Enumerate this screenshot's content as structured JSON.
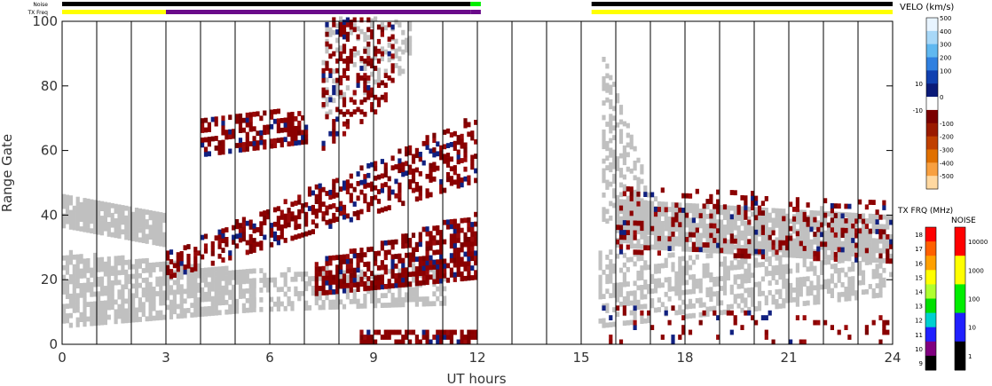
{
  "chart_data": {
    "type": "heatmap",
    "title": "",
    "xlabel": "UT hours",
    "ylabel": "Range Gate",
    "xlim": [
      0,
      24
    ],
    "ylim": [
      0,
      100
    ],
    "x_ticks": [
      "0",
      "3",
      "6",
      "9",
      "12",
      "15",
      "18",
      "21",
      "24"
    ],
    "y_ticks": [
      "0",
      "20",
      "40",
      "60",
      "80",
      "100"
    ],
    "x_tick_values": [
      0,
      3,
      6,
      9,
      12,
      15,
      18,
      21,
      24
    ],
    "y_tick_values": [
      0,
      20,
      40,
      60,
      80,
      100
    ],
    "grid": "vertical lines every hour",
    "status_bars": [
      {
        "name": "Noise",
        "segments": [
          {
            "start": 0,
            "end": 11.8,
            "color": "#000000"
          },
          {
            "start": 11.8,
            "end": 12.1,
            "color": "#00ee00"
          },
          {
            "start": 15.3,
            "end": 24,
            "color": "#000000"
          }
        ]
      },
      {
        "name": "TX Freq",
        "segments": [
          {
            "start": 0,
            "end": 3.0,
            "color": "#ffff00"
          },
          {
            "start": 3.0,
            "end": 11.8,
            "color": "#6a0a8a"
          },
          {
            "start": 11.8,
            "end": 12.1,
            "color": "#6a0a8a"
          },
          {
            "start": 15.3,
            "end": 24,
            "color": "#ffff00"
          }
        ]
      }
    ],
    "no_data_interval": [
      12.1,
      15.3
    ],
    "ground_scatter_color": "#c0c0c0",
    "scatter_regions": [
      {
        "kind": "ground",
        "t0": 0,
        "t1": 3.0,
        "g0": 36,
        "g1": 46,
        "g0e": 30,
        "g1e": 40,
        "density": 0.85
      },
      {
        "kind": "ground",
        "t0": 0,
        "t1": 5.5,
        "g0": 5,
        "g1": 28,
        "g0e": 10,
        "g1e": 22,
        "density": 0.75
      },
      {
        "kind": "ground",
        "t0": 5.5,
        "t1": 11.0,
        "g0": 10,
        "g1": 22,
        "g0e": 12,
        "g1e": 24,
        "density": 0.5
      },
      {
        "kind": "ground",
        "t0": 16.0,
        "t1": 24,
        "g0": 30,
        "g1": 45,
        "g0e": 25,
        "g1e": 40,
        "density": 0.85
      },
      {
        "kind": "ground",
        "t0": 15.6,
        "t1": 17.0,
        "g0": 38,
        "g1": 90,
        "g0e": 30,
        "g1e": 45,
        "density": 0.5
      },
      {
        "kind": "ground",
        "t0": 15.5,
        "t1": 24,
        "g0": 5,
        "g1": 28,
        "g0e": 15,
        "g1e": 25,
        "density": 0.5
      },
      {
        "kind": "ground",
        "t0": 7.5,
        "t1": 10.0,
        "g0": 70,
        "g1": 100,
        "g0e": 85,
        "g1e": 100,
        "density": 0.25
      },
      {
        "kind": "ionospheric",
        "t0": 3.0,
        "t1": 11.9,
        "g0": 20,
        "g1": 28,
        "g0e": 50,
        "g1e": 70,
        "density": 0.45
      },
      {
        "kind": "ionospheric",
        "t0": 4.0,
        "t1": 7.0,
        "g0": 58,
        "g1": 70,
        "g0e": 62,
        "g1e": 72,
        "density": 0.55
      },
      {
        "kind": "ionospheric",
        "t0": 7.3,
        "t1": 11.9,
        "g0": 15,
        "g1": 25,
        "g0e": 20,
        "g1e": 40,
        "density": 0.65
      },
      {
        "kind": "ionospheric",
        "t0": 7.5,
        "t1": 9.5,
        "g0": 60,
        "g1": 100,
        "g0e": 75,
        "g1e": 100,
        "density": 0.3
      },
      {
        "kind": "ionospheric",
        "t0": 8.5,
        "t1": 11.9,
        "g0": 0,
        "g1": 4,
        "g0e": 0,
        "g1e": 4,
        "density": 0.6
      },
      {
        "kind": "ionospheric",
        "t0": 15.5,
        "t1": 24,
        "g0": 0,
        "g1": 12,
        "g0e": 0,
        "g1e": 8,
        "density": 0.15
      },
      {
        "kind": "ionospheric",
        "t0": 16.0,
        "t1": 24,
        "g0": 28,
        "g1": 48,
        "g0e": 25,
        "g1e": 44,
        "density": 0.2
      }
    ],
    "velocity_colorbar": {
      "title": "VELO (km/s)",
      "labels": [
        "500",
        "400",
        "300",
        "200",
        "100",
        "10",
        "0",
        "-10",
        "-100",
        "-200",
        "-300",
        "-400",
        "-500"
      ],
      "colors": [
        "#e8f4ff",
        "#a8d8f8",
        "#60b8f0",
        "#3080e0",
        "#1040b0",
        "#0a1a78",
        "#ffffff",
        "#7a0000",
        "#9a1a00",
        "#c04000",
        "#e07000",
        "#f8a040",
        "#ffd8a0"
      ]
    },
    "txfreq_colorbar": {
      "title": "TX FRQ (MHz)",
      "labels": [
        "18",
        "17",
        "16",
        "15",
        "14",
        "13",
        "12",
        "11",
        "10",
        "9"
      ],
      "colors": [
        "#ff0000",
        "#ff6000",
        "#ffa000",
        "#ffff00",
        "#b0ff30",
        "#00e000",
        "#00d0d0",
        "#2020ff",
        "#800080",
        "#000000"
      ]
    },
    "noise_colorbar": {
      "title": "NOISE",
      "labels": [
        "10000",
        "1000",
        "100",
        "10",
        "1"
      ],
      "colors": [
        "#ff0000",
        "#ffff00",
        "#00ee00",
        "#2020ff",
        "#000000"
      ]
    }
  }
}
